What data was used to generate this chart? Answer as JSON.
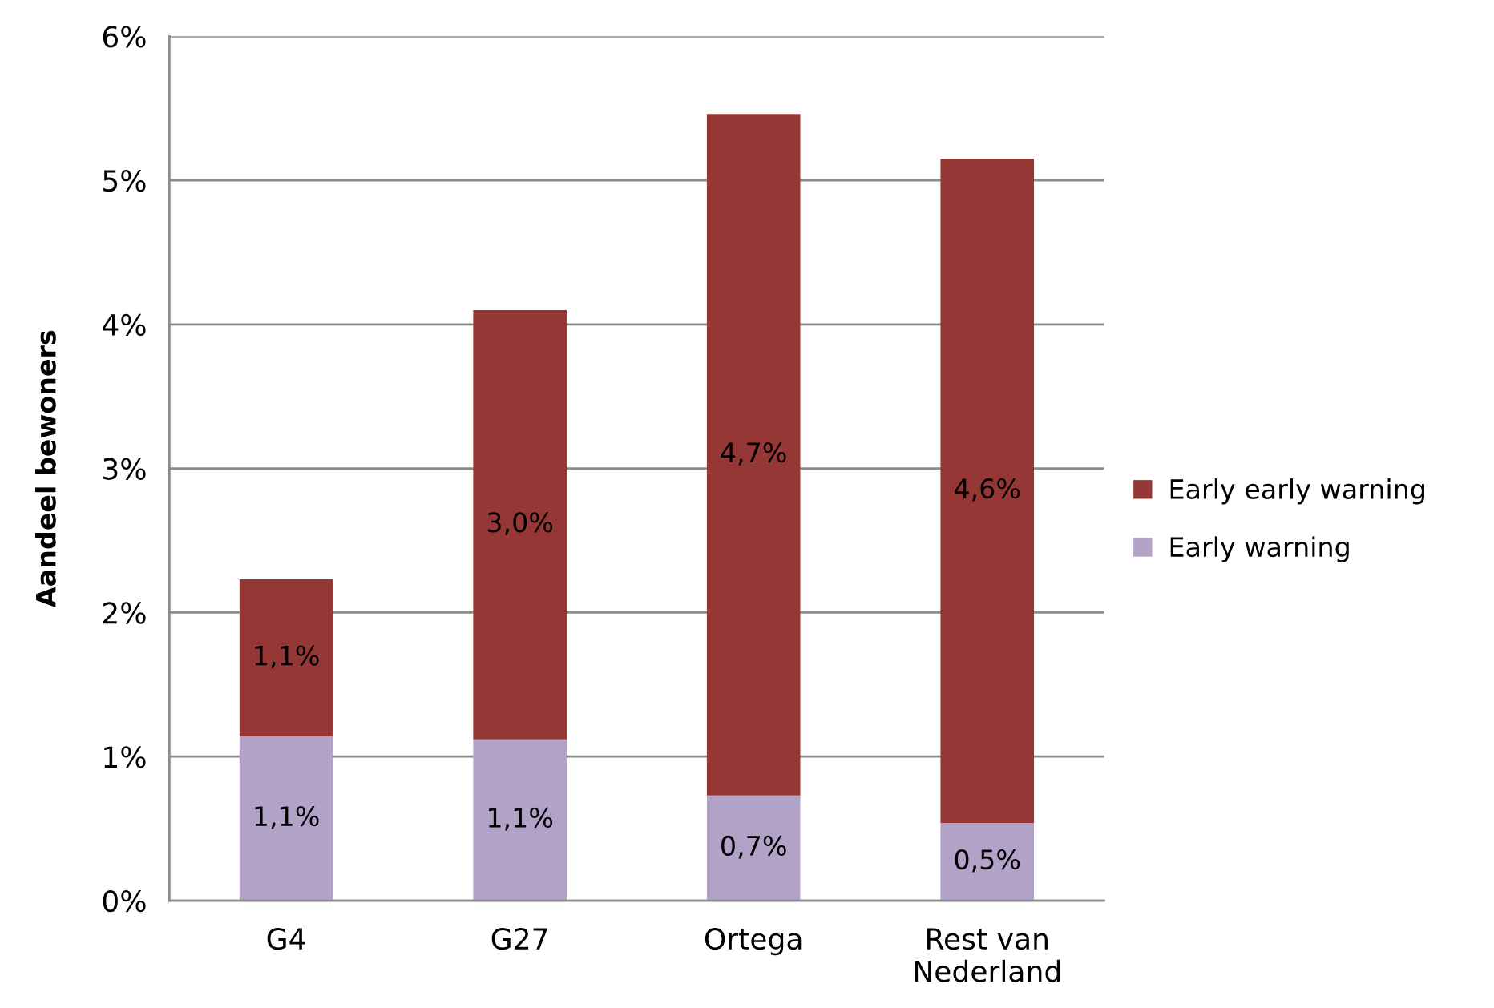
{
  "chart_data": {
    "type": "bar",
    "stacked": true,
    "ylabel": "Aandeel bewoners",
    "categories": [
      "G4",
      "G27",
      "Ortega",
      "Rest van\nNederland"
    ],
    "series": [
      {
        "name": "Early warning",
        "color": "#b3a2c7",
        "values": [
          1.14,
          1.12,
          0.73,
          0.54
        ],
        "value_labels": [
          "1,1%",
          "1,1%",
          "0,7%",
          "0,5%"
        ]
      },
      {
        "name": "Early early warning",
        "color": "#953735",
        "values": [
          1.09,
          2.98,
          4.73,
          4.61
        ],
        "value_labels": [
          "1,1%",
          "3,0%",
          "4,7%",
          "4,6%"
        ]
      }
    ],
    "ylim": [
      0,
      6
    ],
    "yticks": [
      {
        "value": 0,
        "label": "0%"
      },
      {
        "value": 1,
        "label": "1%"
      },
      {
        "value": 2,
        "label": "2%"
      },
      {
        "value": 3,
        "label": "3%"
      },
      {
        "value": 4,
        "label": "4%"
      },
      {
        "value": 5,
        "label": "5%"
      },
      {
        "value": 6,
        "label": "6%"
      }
    ],
    "grid": "y",
    "legend": "right"
  }
}
